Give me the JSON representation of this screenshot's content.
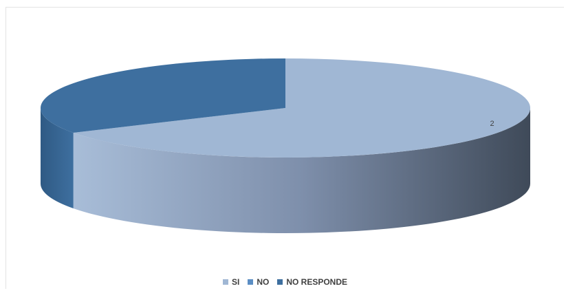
{
  "chart_data": {
    "type": "pie",
    "style": "3d",
    "categories": [
      "SI",
      "NO",
      "NO RESPONDE"
    ],
    "values": [
      2,
      0,
      1
    ],
    "data_labels": [
      "2",
      "",
      ""
    ],
    "colors": [
      "#a0b7d4",
      "#5b8ec4",
      "#3e6f9f"
    ],
    "legend_position": "bottom"
  }
}
